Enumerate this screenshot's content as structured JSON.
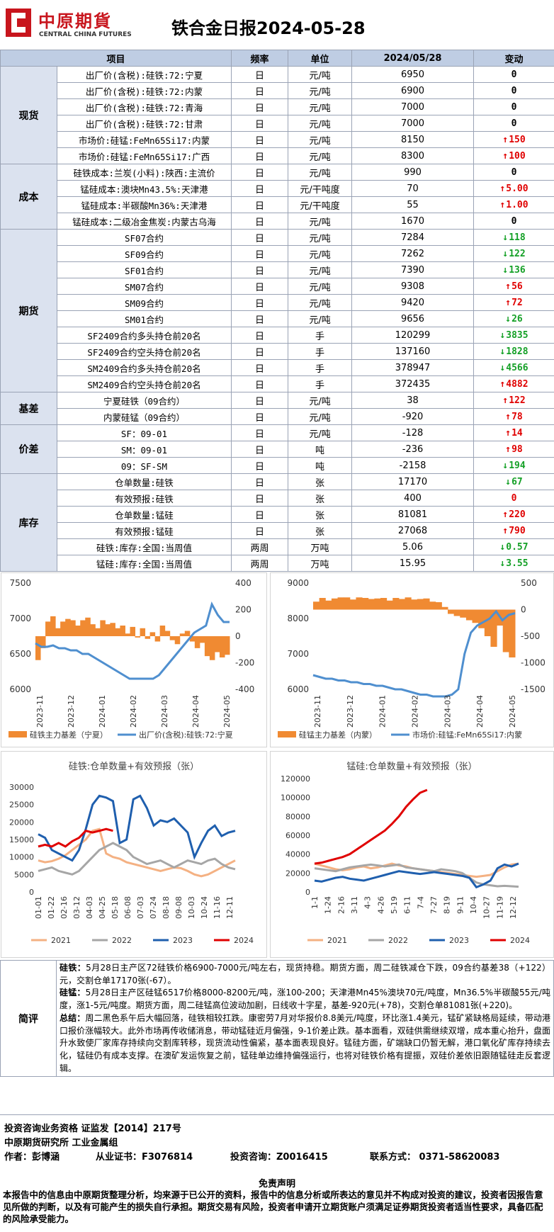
{
  "header": {
    "logo_cn": "中原期貨",
    "logo_en": "CENTRAL CHINA FUTURES",
    "title": "铁合金日报2024-05-28"
  },
  "table": {
    "headers": [
      "项目",
      "频率",
      "单位",
      "2024/05/28",
      "变动"
    ],
    "groups": [
      {
        "name": "现货",
        "rows": [
          {
            "item": "出厂价(含税):硅铁:72:宁夏",
            "freq": "日",
            "unit": "元/吨",
            "value": "6950",
            "change": "0",
            "dir": "flat"
          },
          {
            "item": "出厂价(含税):硅铁:72:内蒙",
            "freq": "日",
            "unit": "元/吨",
            "value": "6900",
            "change": "0",
            "dir": "flat"
          },
          {
            "item": "出厂价(含税):硅铁:72:青海",
            "freq": "日",
            "unit": "元/吨",
            "value": "7000",
            "change": "0",
            "dir": "flat"
          },
          {
            "item": "出厂价(含税):硅铁:72:甘肃",
            "freq": "日",
            "unit": "元/吨",
            "value": "7000",
            "change": "0",
            "dir": "flat"
          },
          {
            "item": "市场价:硅锰:FeMn65Si17:内蒙",
            "freq": "日",
            "unit": "元/吨",
            "value": "8150",
            "change": "150",
            "dir": "up"
          },
          {
            "item": "市场价:硅锰:FeMn65Si17:广西",
            "freq": "日",
            "unit": "元/吨",
            "value": "8300",
            "change": "100",
            "dir": "up"
          }
        ]
      },
      {
        "name": "成本",
        "rows": [
          {
            "item": "硅铁成本:兰炭(小料):陕西:主流价",
            "freq": "日",
            "unit": "元/吨",
            "value": "990",
            "change": "0",
            "dir": "flat"
          },
          {
            "item": "锰硅成本:澳块Mn43.5%:天津港",
            "freq": "日",
            "unit": "元/干吨度",
            "value": "70",
            "change": "5.00",
            "dir": "up"
          },
          {
            "item": "锰硅成本:半碳酸Mn36%:天津港",
            "freq": "日",
            "unit": "元/干吨度",
            "value": "55",
            "change": "1.00",
            "dir": "up"
          },
          {
            "item": "锰硅成本:二级冶金焦炭:内蒙古乌海",
            "freq": "日",
            "unit": "元/吨",
            "value": "1670",
            "change": "0",
            "dir": "flat"
          }
        ]
      },
      {
        "name": "期货",
        "rows": [
          {
            "item": "SF07合约",
            "freq": "日",
            "unit": "元/吨",
            "value": "7284",
            "change": "118",
            "dir": "down"
          },
          {
            "item": "SF09合约",
            "freq": "日",
            "unit": "元/吨",
            "value": "7262",
            "change": "122",
            "dir": "down"
          },
          {
            "item": "SF01合约",
            "freq": "日",
            "unit": "元/吨",
            "value": "7390",
            "change": "136",
            "dir": "down"
          },
          {
            "item": "SM07合约",
            "freq": "日",
            "unit": "元/吨",
            "value": "9308",
            "change": "56",
            "dir": "up"
          },
          {
            "item": "SM09合约",
            "freq": "日",
            "unit": "元/吨",
            "value": "9420",
            "change": "72",
            "dir": "up"
          },
          {
            "item": "SM01合约",
            "freq": "日",
            "unit": "元/吨",
            "value": "9656",
            "change": "26",
            "dir": "down"
          },
          {
            "item": "SF2409合约多头持仓前20名",
            "freq": "日",
            "unit": "手",
            "value": "120299",
            "change": "3835",
            "dir": "down"
          },
          {
            "item": "SF2409合约空头持仓前20名",
            "freq": "日",
            "unit": "手",
            "value": "137160",
            "change": "1828",
            "dir": "down"
          },
          {
            "item": "SM2409合约多头持仓前20名",
            "freq": "日",
            "unit": "手",
            "value": "378947",
            "change": "4566",
            "dir": "down"
          },
          {
            "item": "SM2409合约空头持仓前20名",
            "freq": "日",
            "unit": "手",
            "value": "372435",
            "change": "4882",
            "dir": "up"
          }
        ]
      },
      {
        "name": "基差",
        "rows": [
          {
            "item": "宁夏硅铁（09合约）",
            "freq": "日",
            "unit": "元/吨",
            "value": "38",
            "change": "122",
            "dir": "up"
          },
          {
            "item": "内蒙硅锰（09合约）",
            "freq": "日",
            "unit": "元/吨",
            "value": "-920",
            "change": "78",
            "dir": "up"
          }
        ]
      },
      {
        "name": "价差",
        "rows": [
          {
            "item": "SF：09-01",
            "freq": "日",
            "unit": "元/吨",
            "value": "-128",
            "change": "14",
            "dir": "up"
          },
          {
            "item": "SM：09-01",
            "freq": "日",
            "unit": "吨",
            "value": "-236",
            "change": "98",
            "dir": "up"
          },
          {
            "item": "09：SF-SM",
            "freq": "日",
            "unit": "吨",
            "value": "-2158",
            "change": "194",
            "dir": "down"
          }
        ]
      },
      {
        "name": "库存",
        "rows": [
          {
            "item": "仓单数量:硅铁",
            "freq": "日",
            "unit": "张",
            "value": "17170",
            "change": "67",
            "dir": "down"
          },
          {
            "item": "有效预报:硅铁",
            "freq": "日",
            "unit": "张",
            "value": "400",
            "change": "0",
            "dir": "zero-red"
          },
          {
            "item": "仓单数量:锰硅",
            "freq": "日",
            "unit": "张",
            "value": "81081",
            "change": "220",
            "dir": "up"
          },
          {
            "item": "有效预报:锰硅",
            "freq": "日",
            "unit": "张",
            "value": "27068",
            "change": "790",
            "dir": "up"
          },
          {
            "item": "硅铁:库存:全国:当周值",
            "freq": "两周",
            "unit": "万吨",
            "value": "5.06",
            "change": "0.57",
            "dir": "down"
          },
          {
            "item": "锰硅:库存:全国:当周值",
            "freq": "两周",
            "unit": "万吨",
            "value": "15.95",
            "change": "3.55",
            "dir": "down"
          }
        ]
      }
    ]
  },
  "chart_data": [
    {
      "type": "bar+line",
      "title": "",
      "x_ticks": [
        "2023-11",
        "2023-12",
        "2024-01",
        "2024-02",
        "2024-03",
        "2024-04",
        "2024-05"
      ],
      "y_left": [
        6000,
        6500,
        7000,
        7500
      ],
      "y_right": [
        -400,
        -200,
        0,
        200,
        400
      ],
      "series": [
        {
          "name": "硅铁主力基差（宁夏）",
          "axis": "right",
          "kind": "bar",
          "color": "#f08a32",
          "values": [
            -180,
            -90,
            110,
            150,
            60,
            110,
            130,
            120,
            80,
            120,
            140,
            90,
            60,
            120,
            90,
            100,
            60,
            80,
            20,
            70,
            -10,
            60,
            -20,
            30,
            -40,
            80,
            40,
            -30,
            -60,
            20,
            40,
            -40,
            -90,
            -50,
            -150,
            -180,
            -120,
            -160,
            -140
          ]
        },
        {
          "name": "出厂价(含税):硅铁:72:宁夏",
          "axis": "left",
          "kind": "line",
          "color": "#4f8fcf",
          "values": [
            6650,
            6600,
            6600,
            6620,
            6580,
            6580,
            6550,
            6550,
            6500,
            6500,
            6450,
            6400,
            6350,
            6300,
            6250,
            6200,
            6150,
            6150,
            6150,
            6150,
            6150,
            6200,
            6300,
            6400,
            6500,
            6600,
            6700,
            6800,
            6850,
            6900,
            7200,
            7050,
            6950,
            6950
          ]
        }
      ]
    },
    {
      "type": "bar+line",
      "title": "",
      "x_ticks": [
        "2023-11",
        "2023-12",
        "2024-01",
        "2024-02",
        "2024-03",
        "2024-04",
        "2024-05"
      ],
      "y_left": [
        6000,
        7000,
        8000,
        9000
      ],
      "y_right": [
        -1500,
        -1000,
        -500,
        0,
        500
      ],
      "series": [
        {
          "name": "硅锰主力基差（内蒙）",
          "axis": "right",
          "kind": "bar",
          "color": "#f08a32",
          "values": [
            150,
            220,
            170,
            210,
            230,
            230,
            190,
            230,
            220,
            200,
            210,
            220,
            170,
            220,
            200,
            230,
            190,
            200,
            210,
            150,
            140,
            50,
            -80,
            -120,
            -150,
            -200,
            -250,
            -350,
            -500,
            -700,
            -300,
            -800,
            -900
          ]
        },
        {
          "name": "市场价:硅锰:FeMn65Si17:内蒙",
          "axis": "left",
          "kind": "line",
          "color": "#4f8fcf",
          "values": [
            6400,
            6350,
            6300,
            6300,
            6250,
            6250,
            6200,
            6200,
            6150,
            6150,
            6100,
            6100,
            6050,
            6000,
            6000,
            5950,
            5900,
            5850,
            5850,
            5800,
            5800,
            5800,
            5850,
            6000,
            7000,
            7600,
            7800,
            7900,
            8000,
            8200,
            7950,
            8100,
            8150
          ]
        }
      ]
    },
    {
      "type": "line",
      "title": "硅铁:仓单数量+有效预报（张）",
      "x_ticks": [
        "01-01",
        "01-22",
        "02-16",
        "03-12",
        "04-03",
        "04-25",
        "05-18",
        "06-08",
        "07-03",
        "07-24",
        "08-18",
        "09-08",
        "10-03",
        "10-24",
        "11-16",
        "12-11"
      ],
      "y_ticks": [
        0,
        5000,
        10000,
        15000,
        20000,
        25000,
        30000
      ],
      "series": [
        {
          "name": "2021",
          "color": "#f4b183",
          "values": [
            9000,
            8500,
            8800,
            9500,
            10500,
            12000,
            13500,
            15000,
            17500,
            18000,
            11000,
            10000,
            9500,
            8500,
            8000,
            7500,
            7000,
            6500,
            6000,
            6500,
            7000,
            6800,
            6000,
            5000,
            4500,
            5000,
            6000,
            7000,
            8000,
            9000
          ]
        },
        {
          "name": "2022",
          "color": "#a6a6a6",
          "values": [
            6000,
            6500,
            7000,
            6000,
            5500,
            5000,
            6000,
            8000,
            10000,
            12000,
            13000,
            14000,
            13000,
            12000,
            10000,
            9000,
            8000,
            8500,
            9000,
            8000,
            7000,
            8000,
            9000,
            8500,
            8000,
            9000,
            9500,
            8000,
            7000,
            6500
          ]
        },
        {
          "name": "2023",
          "color": "#1f5fae",
          "values": [
            16500,
            15500,
            12000,
            11000,
            10000,
            9000,
            12000,
            18000,
            25000,
            27500,
            27000,
            26000,
            14000,
            15000,
            26500,
            27500,
            24000,
            19000,
            20500,
            20000,
            21000,
            19000,
            17000,
            10000,
            14000,
            17500,
            19000,
            16000,
            17000,
            17500
          ]
        },
        {
          "name": "2024",
          "color": "#e00000",
          "values": [
            13000,
            13500,
            13000,
            14000,
            13000,
            14500,
            15500,
            17500,
            17000,
            17500,
            18000,
            17500
          ]
        }
      ]
    },
    {
      "type": "line",
      "title": "锰硅:仓单数量+有效预报（张）",
      "x_ticks": [
        "1-1",
        "1-24",
        "2-16",
        "3-11",
        "4-3",
        "4-26",
        "5-19",
        "6-11",
        "7-4",
        "7-27",
        "8-19",
        "9-11",
        "10-4",
        "10-27",
        "11-19",
        "12-12"
      ],
      "y_ticks": [
        0,
        20000,
        40000,
        60000,
        80000,
        100000,
        120000
      ],
      "series": [
        {
          "name": "2021",
          "color": "#f4b183",
          "values": [
            30000,
            28000,
            26000,
            24000,
            23000,
            24000,
            26000,
            27000,
            25000,
            26000,
            28000,
            30000,
            28000,
            27000,
            25000,
            24000,
            23000,
            22000,
            21000,
            20000,
            19000,
            18000,
            17000,
            16000,
            17000,
            18000,
            22000,
            26000,
            29000,
            30000
          ]
        },
        {
          "name": "2022",
          "color": "#a6a6a6",
          "values": [
            25000,
            24000,
            23000,
            22000,
            24000,
            26000,
            27000,
            28000,
            29000,
            28000,
            27000,
            28000,
            29000,
            26000,
            25000,
            24000,
            23000,
            22000,
            24000,
            23000,
            22000,
            20000,
            15000,
            10000,
            8000,
            7000,
            6000,
            6500,
            6000,
            5500
          ]
        },
        {
          "name": "2023",
          "color": "#1f5fae",
          "values": [
            12000,
            11000,
            13000,
            15000,
            16000,
            14000,
            13000,
            12000,
            14000,
            16000,
            18000,
            20000,
            22000,
            21000,
            20000,
            19000,
            20000,
            21000,
            20000,
            19000,
            18000,
            17000,
            15000,
            5000,
            8000,
            12000,
            25000,
            29000,
            27000,
            30000
          ]
        },
        {
          "name": "2024",
          "color": "#e00000",
          "values": [
            30000,
            31000,
            33000,
            35000,
            37000,
            40000,
            45000,
            50000,
            55000,
            60000,
            65000,
            72000,
            80000,
            90000,
            98000,
            105000,
            108000
          ]
        }
      ]
    }
  ],
  "comment": {
    "label": "简评",
    "p1_head": "硅铁：",
    "p1": "5月28日主产区72硅铁价格6900-7000元/吨左右，现货持稳。期货方面，周二硅铁减仓下跌，09合约基差38（+122）元，交割仓单17170张(-67）。",
    "p2_head": "硅锰：",
    "p2": "5月28日主产区硅锰6517价格8000-8200元/吨，涨100-200；天津港Mn45%澳块70元/吨度，Mn36.5%半碳酸55元/吨度，涨1-5元/吨度。期货方面，周二硅锰高位波动加剧，日线收十字星，基差-920元(+78)，交割仓单81081张(+220)。",
    "p3_head": "总结：",
    "p3": "周二黑色系午后大幅回落，硅铁相较扛跌。康密劳7月对华报价8.8美元/吨度，环比涨1.4美元，锰矿紧缺格局延续，带动港口报价涨幅较大。此外市场再传收储消息，带动锰硅近月偏强，9-1价差止跌。基本面看，双硅供需继续双增，成本重心抬升，盘面升水致使厂家库存持续向交割库转移，现货流动性偏紧，基本面表现良好。锰硅方面，矿端缺口仍暂无解，港口氧化矿库存持续去化，锰硅仍有成本支撑。在澳矿发运恢复之前，锰硅单边维持偏强运行，也将对硅铁价格有提振，双硅价差依旧跟随锰硅走反套逻辑。"
  },
  "footer": {
    "line1": "投资咨询业务资格    证监发【2014】217号",
    "line2": "中原期货研究所      工业金属组",
    "author": "作者：彭博涵",
    "cert": "从业证书：F3076814",
    "advisory": "投资咨询：Z0016415",
    "contact": "联系方式：  0371-58620083",
    "disclaimer_title": "免责声明",
    "disclaimer": "本报告中的信息由中原期货整理分析，均来源于已公开的资料，报告中的信息分析或所表达的意见并不构成对投资的建议，投资者因报告意见所做的判断，以及有可能产生的损失自行承担。期货交易有风险，投资者申请开立期货账户须满足证券期货投资者适当性要求，具备匹配的风险承受能力。"
  }
}
